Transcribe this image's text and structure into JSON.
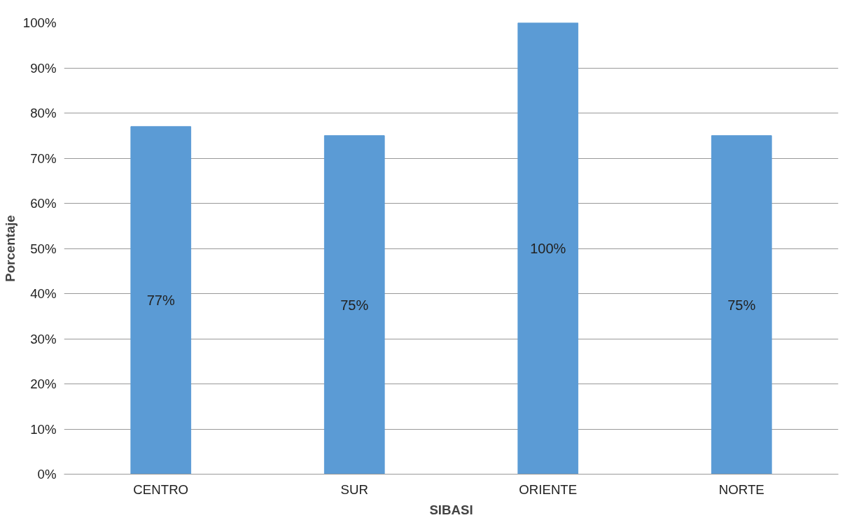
{
  "chart_data": {
    "type": "bar",
    "xlabel": "SIBASI",
    "ylabel": "Porcentaje",
    "categories": [
      "CENTRO",
      "SUR",
      "ORIENTE",
      "NORTE"
    ],
    "values": [
      77,
      75,
      100,
      75
    ],
    "color": "#5b9bd5",
    "value_labels": [
      "77%",
      "75%",
      "100%",
      "75%"
    ],
    "ylim": [
      0,
      100
    ],
    "yticks": [
      {
        "value": 0,
        "label": "0%"
      },
      {
        "value": 10,
        "label": "10%"
      },
      {
        "value": 20,
        "label": "20%"
      },
      {
        "value": 30,
        "label": "30%"
      },
      {
        "value": 40,
        "label": "40%"
      },
      {
        "value": 50,
        "label": "50%"
      },
      {
        "value": 60,
        "label": "60%"
      },
      {
        "value": 70,
        "label": "70%"
      },
      {
        "value": 80,
        "label": "80%"
      },
      {
        "value": 90,
        "label": "90%"
      },
      {
        "value": 100,
        "label": "100%"
      }
    ],
    "grid": "y"
  }
}
